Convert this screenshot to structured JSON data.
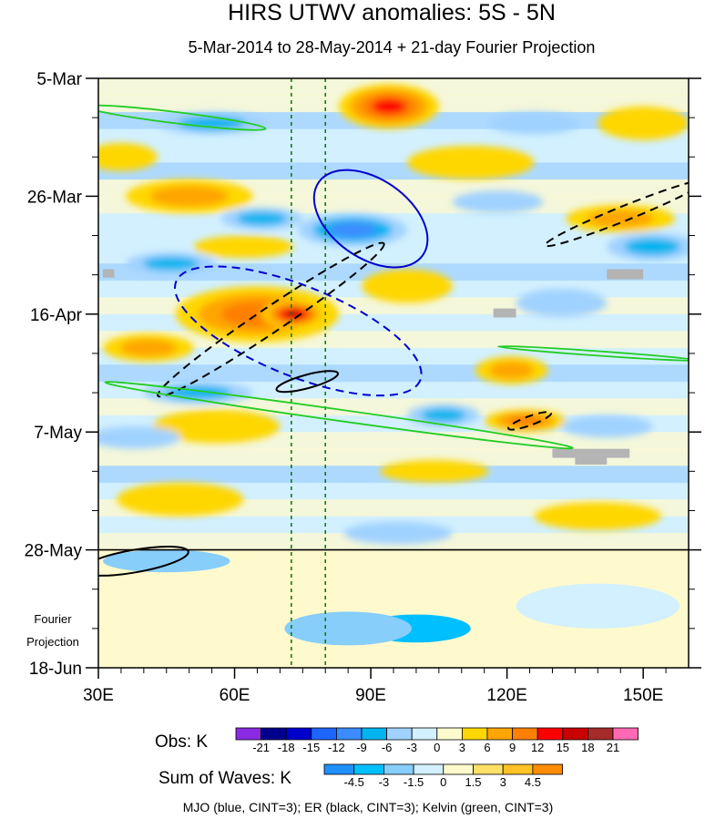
{
  "chart_data": {
    "type": "heatmap",
    "title": "HIRS UTWV anomalies: 5S - 5N",
    "subtitle": "5-Mar-2014 to 28-May-2014 + 21-day Fourier Projection",
    "x_ticks": [
      {
        "label": "30E",
        "lon": 30
      },
      {
        "label": "60E",
        "lon": 60
      },
      {
        "label": "90E",
        "lon": 90
      },
      {
        "label": "120E",
        "lon": 120
      },
      {
        "label": "150E",
        "lon": 150
      }
    ],
    "x_range": [
      30,
      160
    ],
    "y_ticks": [
      {
        "label": "5-Mar",
        "day": 0
      },
      {
        "label": "26-Mar",
        "day": 21
      },
      {
        "label": "16-Apr",
        "day": 42
      },
      {
        "label": "7-May",
        "day": 63
      },
      {
        "label": "28-May",
        "day": 84
      },
      {
        "label": "18-Jun",
        "day": 105
      }
    ],
    "y_range_days": [
      0,
      105
    ],
    "projection_start_day": 84,
    "projection_label_line1": "Fourier",
    "projection_label_line2": "Projection",
    "vertical_reference_lons": [
      72.5,
      80
    ],
    "obs_colorbar": {
      "title": "Obs: K",
      "levels": [
        "-21",
        "-18",
        "-15",
        "-12",
        "-9",
        "-6",
        "-3",
        "0",
        "3",
        "6",
        "9",
        "12",
        "15",
        "18",
        "21"
      ],
      "colors": [
        "#8a2be2",
        "#00008b",
        "#0000cd",
        "#1e64ff",
        "#3c8cff",
        "#00b4f0",
        "#a0d2ff",
        "#d2f0ff",
        "#fffacd",
        "#ffd700",
        "#ffa500",
        "#ff7f00",
        "#ff0000",
        "#c80000",
        "#a52a2a",
        "#ff69b4"
      ]
    },
    "sum_colorbar": {
      "title": "Sum of Waves: K",
      "levels": [
        "-4.5",
        "-3",
        "-1.5",
        "0",
        "1.5",
        "3",
        "4.5"
      ],
      "colors": [
        "#1e90ff",
        "#00bfff",
        "#87cefa",
        "#d2f0ff",
        "#fffacd",
        "#ffe066",
        "#ffc125",
        "#ff8c00"
      ]
    },
    "caption": "MJO (blue, CINT=3); ER (black, CINT=3); Kelvin (green, CINT=3)",
    "wave_contours": [
      {
        "wave": "MJO",
        "color": "#0000cd",
        "style": "solid",
        "center_lon": 90,
        "center_day": 25,
        "rx_lon": 14,
        "ry_days": 7,
        "tilt_deg": 35
      },
      {
        "wave": "MJO",
        "color": "#0000cd",
        "style": "dashed",
        "center_lon": 74,
        "center_day": 45,
        "rx_lon": 29,
        "ry_days": 8,
        "tilt_deg": 22
      },
      {
        "wave": "ER",
        "color": "#000000",
        "style": "dashed",
        "center_lon": 68,
        "center_day": 43,
        "rx_lon": 30,
        "ry_days": 2.2,
        "tilt_deg": -34
      },
      {
        "wave": "ER",
        "color": "#000000",
        "style": "dashed",
        "center_lon": 146,
        "center_day": 24,
        "rx_lon": 19,
        "ry_days": 1.3,
        "tilt_deg": -22
      },
      {
        "wave": "ER",
        "color": "#000000",
        "style": "dashed",
        "center_lon": 125,
        "center_day": 61,
        "rx_lon": 5,
        "ry_days": 0.8,
        "tilt_deg": -20
      },
      {
        "wave": "ER",
        "color": "#000000",
        "style": "solid",
        "center_lon": 76,
        "center_day": 54,
        "rx_lon": 7,
        "ry_days": 1.2,
        "tilt_deg": -15
      },
      {
        "wave": "ER",
        "color": "#000000",
        "style": "solid",
        "center_lon": 38,
        "center_day": 86,
        "rx_lon": 12,
        "ry_days": 2,
        "tilt_deg": -10
      },
      {
        "wave": "Kelvin",
        "color": "#22cc22",
        "style": "solid",
        "center_lon": 47,
        "center_day": 7,
        "rx_lon": 20,
        "ry_days": 1,
        "tilt_deg": 7
      },
      {
        "wave": "Kelvin",
        "color": "#22cc22",
        "style": "solid",
        "center_lon": 83,
        "center_day": 60,
        "rx_lon": 52,
        "ry_days": 1,
        "tilt_deg": 8
      },
      {
        "wave": "Kelvin",
        "color": "#22cc22",
        "style": "solid",
        "center_lon": 140,
        "center_day": 49,
        "rx_lon": 22,
        "ry_days": 0.4,
        "tilt_deg": 4
      }
    ],
    "anomaly_blobs": [
      {
        "lon": 94,
        "day": 5,
        "rlon": 11,
        "rday": 4,
        "value": 12
      },
      {
        "lon": 65,
        "day": 42,
        "rlon": 18,
        "rday": 5,
        "value": 9
      },
      {
        "lon": 73,
        "day": 42,
        "rlon": 7,
        "rday": 2.5,
        "value": 15
      },
      {
        "lon": 50,
        "day": 21,
        "rlon": 14,
        "rday": 3,
        "value": 6
      },
      {
        "lon": 41,
        "day": 48,
        "rlon": 10,
        "rday": 2.5,
        "value": 6
      },
      {
        "lon": 56,
        "day": 62,
        "rlon": 14,
        "rday": 3,
        "value": 5
      },
      {
        "lon": 35,
        "day": 14,
        "rlon": 8,
        "rday": 2.5,
        "value": 5
      },
      {
        "lon": 124,
        "day": 61,
        "rlon": 9,
        "rday": 2,
        "value": 10
      },
      {
        "lon": 145,
        "day": 25,
        "rlon": 12,
        "rday": 2.5,
        "value": 6
      },
      {
        "lon": 112,
        "day": 15,
        "rlon": 14,
        "rday": 3,
        "value": 5
      },
      {
        "lon": 121,
        "day": 52,
        "rlon": 8,
        "rday": 2.5,
        "value": 6
      },
      {
        "lon": 150,
        "day": 8,
        "rlon": 10,
        "rday": 3,
        "value": 5
      },
      {
        "lon": 98,
        "day": 37,
        "rlon": 10,
        "rday": 3,
        "value": 5
      },
      {
        "lon": 62,
        "day": 30,
        "rlon": 11,
        "rday": 2,
        "value": 5
      },
      {
        "lon": 48,
        "day": 75,
        "rlon": 14,
        "rday": 3,
        "value": 5
      },
      {
        "lon": 140,
        "day": 78,
        "rlon": 14,
        "rday": 2.5,
        "value": 5
      },
      {
        "lon": 104,
        "day": 70,
        "rlon": 12,
        "rday": 2,
        "value": 4
      },
      {
        "lon": 55,
        "day": 8,
        "rlon": 12,
        "rday": 2,
        "value": -8
      },
      {
        "lon": 86,
        "day": 27,
        "rlon": 12,
        "rday": 3,
        "value": -9
      },
      {
        "lon": 66,
        "day": 25,
        "rlon": 9,
        "rday": 2,
        "value": -6
      },
      {
        "lon": 46,
        "day": 33,
        "rlon": 10,
        "rday": 2,
        "value": -6
      },
      {
        "lon": 52,
        "day": 56,
        "rlon": 12,
        "rday": 2,
        "value": -6
      },
      {
        "lon": 106,
        "day": 60,
        "rlon": 8,
        "rday": 2,
        "value": -6
      },
      {
        "lon": 152,
        "day": 30,
        "rlon": 10,
        "rday": 2.5,
        "value": -6
      },
      {
        "lon": 132,
        "day": 40,
        "rlon": 10,
        "rday": 2.5,
        "value": -5
      },
      {
        "lon": 96,
        "day": 81,
        "rlon": 12,
        "rday": 2,
        "value": -5
      },
      {
        "lon": 38,
        "day": 64,
        "rlon": 10,
        "rday": 2,
        "value": -5
      },
      {
        "lon": 142,
        "day": 62,
        "rlon": 10,
        "rday": 2,
        "value": -5
      },
      {
        "lon": 118,
        "day": 22,
        "rlon": 10,
        "rday": 2,
        "value": -4
      },
      {
        "lon": 126,
        "day": 8,
        "rlon": 10,
        "rday": 2,
        "value": -4
      }
    ],
    "projection_blobs": [
      {
        "lon": 45,
        "day": 86,
        "rlon": 14,
        "rday": 2,
        "value": -2
      },
      {
        "lon": 100,
        "day": 98,
        "rlon": 12,
        "rday": 2.5,
        "value": -3
      },
      {
        "lon": 85,
        "day": 98,
        "rlon": 14,
        "rday": 3,
        "value": -1.5
      },
      {
        "lon": 140,
        "day": 94,
        "rlon": 18,
        "rday": 4,
        "value": -1
      },
      {
        "lon": 40,
        "day": 100,
        "rlon": 10,
        "rday": 6,
        "value": 1
      }
    ],
    "missing_data_boxes": [
      {
        "lon": 31,
        "day": 34,
        "wlon": 2.5,
        "hday": 1.5
      },
      {
        "lon": 142,
        "day": 34,
        "wlon": 8,
        "hday": 1.8
      },
      {
        "lon": 117,
        "day": 41,
        "wlon": 5,
        "hday": 1.6
      },
      {
        "lon": 130,
        "day": 66,
        "wlon": 17,
        "hday": 1.6
      },
      {
        "lon": 135,
        "day": 67,
        "wlon": 7,
        "hday": 1.8
      }
    ]
  }
}
